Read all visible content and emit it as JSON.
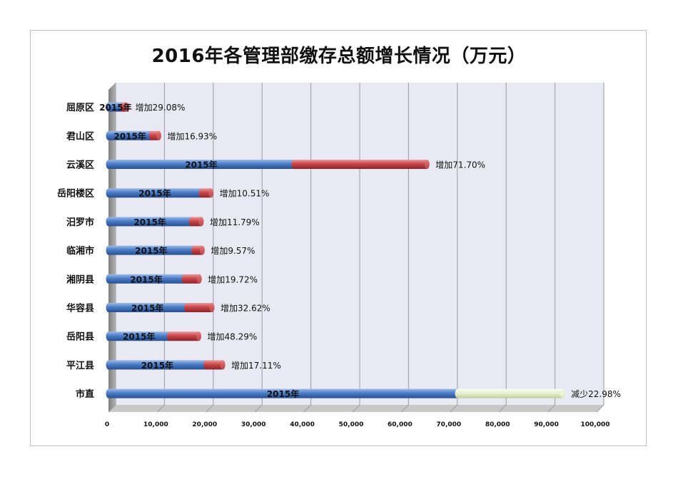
{
  "title": "2016年各管理部缴存总额增长情况（万元）",
  "colors": {
    "base": "#4a7cc6",
    "increase": "#c9464a",
    "decrease": "#e6eecc",
    "plot_bg": "#e9e9f3",
    "floor": "#c8c8c8",
    "wall": "#9a9a9a"
  },
  "chart_data": {
    "type": "bar",
    "orientation": "horizontal",
    "stacked": true,
    "three_d": true,
    "title": "2016年各管理部缴存总额增长情况（万元）",
    "categories": [
      "屈原区",
      "君山区",
      "云溪区",
      "岳阳楼区",
      "汨罗市",
      "临湘市",
      "湘阴县",
      "华容县",
      "岳阳县",
      "平江县",
      "市直"
    ],
    "series": [
      {
        "name": "2015年",
        "values": [
          2900,
          8800,
          38000,
          19000,
          17000,
          17500,
          15500,
          16000,
          12500,
          20000,
          71500
        ]
      },
      {
        "name": "",
        "values": [
          850,
          1500,
          27250,
          2000,
          2000,
          1700,
          3100,
          5200,
          6000,
          3400,
          0
        ]
      },
      {
        "name": "",
        "values": [
          0,
          0,
          0,
          0,
          0,
          0,
          0,
          0,
          0,
          0,
          21500
        ]
      }
    ],
    "bar_inner_label": "2015年",
    "annotations": [
      "增加29.08%",
      "增加16.93%",
      "增加71.70%",
      "增加10.51%",
      "增加11.79%",
      "增加9.57%",
      "增加19.72%",
      "增加32.62%",
      "增加48.29%",
      "增加17.11%",
      "减少22.98%"
    ],
    "xlim": [
      0,
      100000
    ],
    "xticks": [
      0,
      10000,
      20000,
      30000,
      40000,
      50000,
      60000,
      70000,
      80000,
      90000,
      100000
    ],
    "xtick_labels": [
      "0",
      "10,000",
      "20,000",
      "30,000",
      "40,000",
      "50,000",
      "60,000",
      "70,000",
      "80,000",
      "90,000",
      "100,000"
    ],
    "grid": true,
    "legend": "none"
  }
}
